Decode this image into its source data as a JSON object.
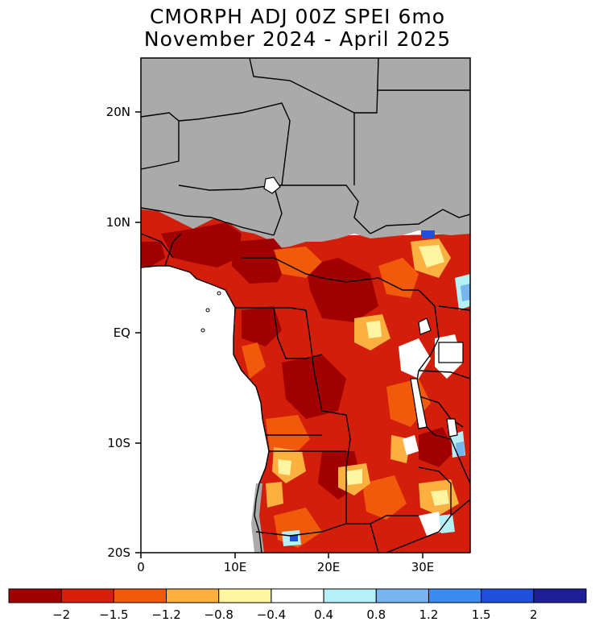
{
  "title": {
    "line1": "CMORPH ADJ 00Z SPEI 6mo",
    "line2": "November 2024 - April 2025"
  },
  "axes": {
    "lat_labels": [
      "20N",
      "10N",
      "EQ",
      "10S",
      "20S"
    ],
    "lon_labels": [
      "0",
      "10E",
      "20E",
      "30E"
    ]
  },
  "colorbar": {
    "labels": [
      "-2",
      "-1.5",
      "-1.2",
      "-0.8",
      "-0.4",
      "0.4",
      "0.8",
      "1.2",
      "1.5",
      "2"
    ],
    "colors": [
      "#a00000",
      "#d81e0a",
      "#f05a0a",
      "#fbb040",
      "#fff5a0",
      "#ffffff",
      "#b4f0f5",
      "#78b4f0",
      "#3c8cf0",
      "#1e50dc",
      "#1e1e96"
    ]
  },
  "colors": {
    "no_data": "#aaaaaa",
    "ocean": "#ffffff",
    "dominant_dry": "#d21e0a",
    "extreme_dry": "#a00000",
    "border": "#000000"
  }
}
